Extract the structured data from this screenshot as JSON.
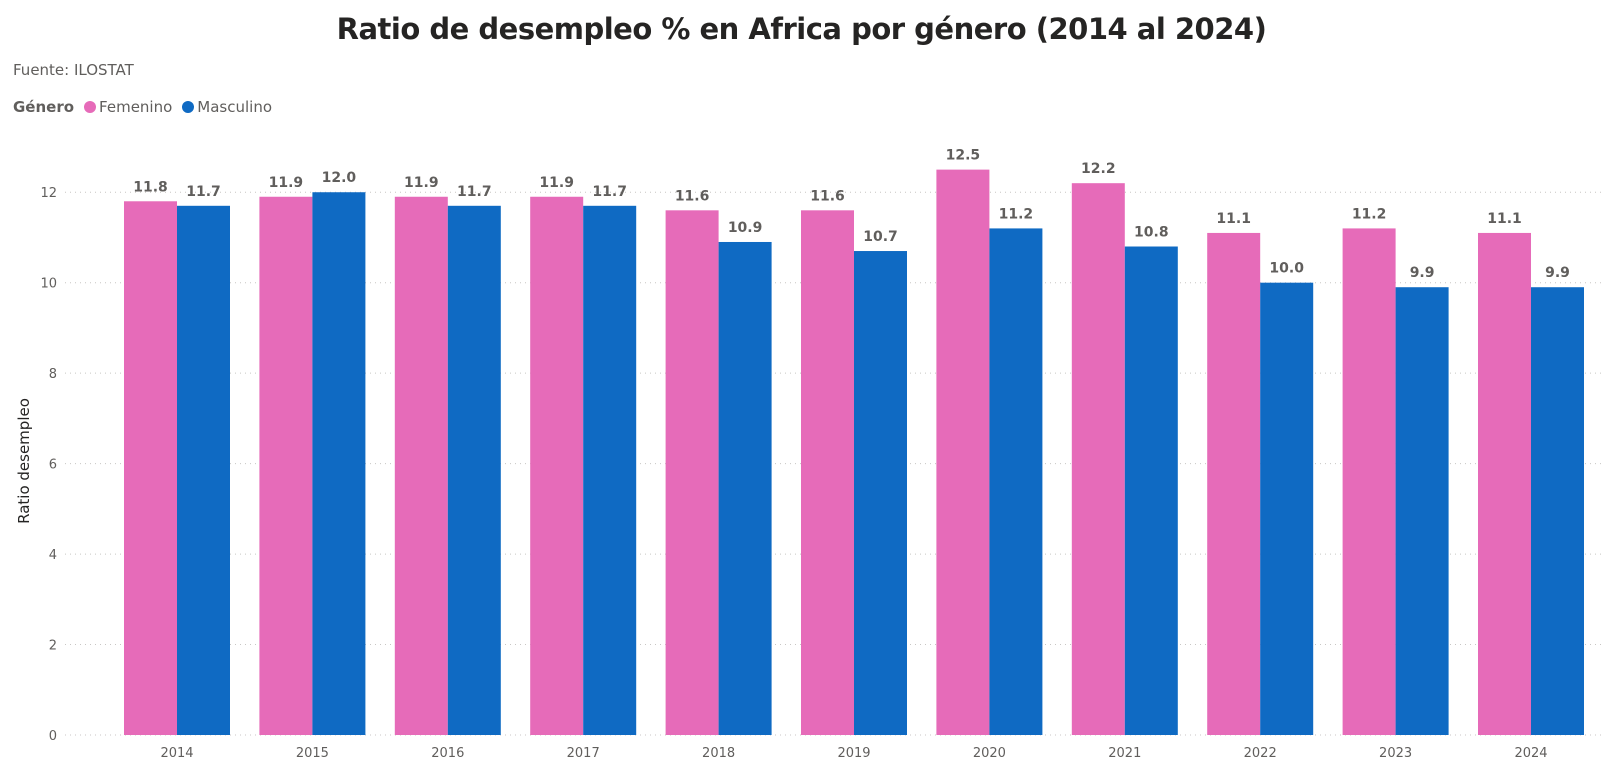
{
  "title": "Ratio de desempleo % en Africa por género (2014 al 2024)",
  "subtitle": "Fuente: ILOSTAT",
  "legend": {
    "title": "Género",
    "placement": "top-left"
  },
  "chart_data": {
    "type": "bar",
    "title": "Ratio de desempleo % en Africa por género (2014 al 2024)",
    "xlabel": "",
    "ylabel": "Ratio desempleo",
    "categories": [
      "2014",
      "2015",
      "2016",
      "2017",
      "2018",
      "2019",
      "2020",
      "2021",
      "2022",
      "2023",
      "2024"
    ],
    "series": [
      {
        "name": "Femenino",
        "color": "#E66BB9",
        "values": [
          11.8,
          11.9,
          11.9,
          11.9,
          11.6,
          11.6,
          12.5,
          12.2,
          11.1,
          11.2,
          11.1
        ],
        "labels": [
          "11.8",
          "11.9",
          "11.9",
          "11.9",
          "11.6",
          "11.6",
          "12.5",
          "12.2",
          "11.1",
          "11.2",
          "11.1"
        ]
      },
      {
        "name": "Masculino",
        "color": "#0F6AC3",
        "values": [
          11.7,
          12.0,
          11.7,
          11.7,
          10.9,
          10.7,
          11.2,
          10.8,
          10.0,
          9.9,
          9.9
        ],
        "labels": [
          "11.7",
          "12.0",
          "11.7",
          "11.7",
          "10.9",
          "10.7",
          "11.2",
          "10.8",
          "10.0",
          "9.9",
          "9.9"
        ]
      }
    ],
    "ylim": [
      0,
      13
    ],
    "yticks": [
      "0",
      "2",
      "4",
      "6",
      "8",
      "10",
      "12"
    ],
    "grid": true
  }
}
